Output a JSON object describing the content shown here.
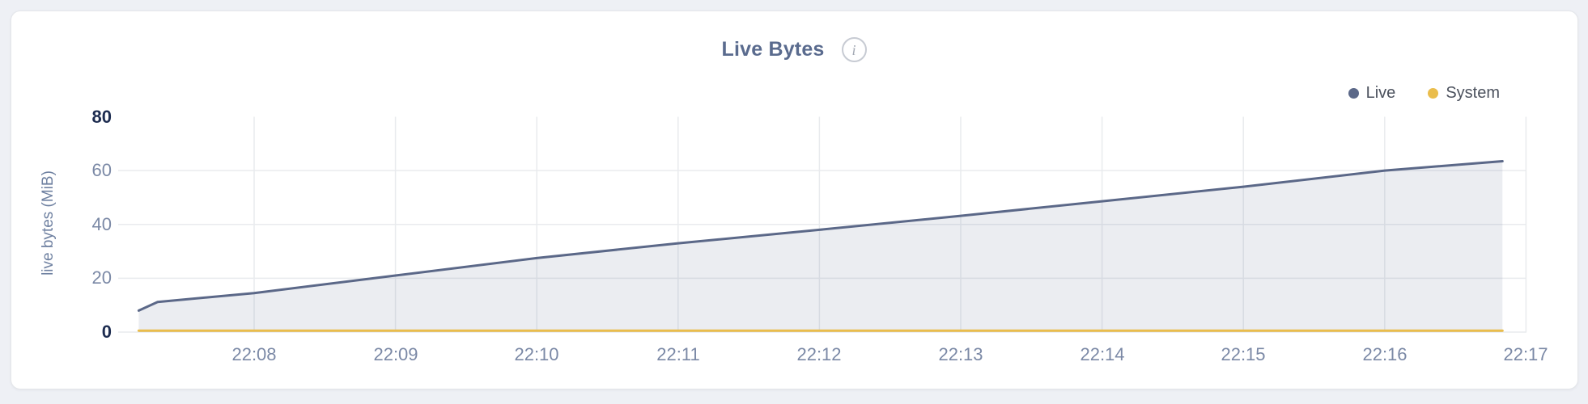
{
  "page": {
    "background": "#eef0f5"
  },
  "card": {
    "background": "#ffffff",
    "border_color": "#e4e6ea"
  },
  "header": {
    "info_glyph": "i",
    "info_icon": "info-circle-icon"
  },
  "chart_data": {
    "type": "area",
    "title": "Live Bytes",
    "ylabel": "live bytes (MiB)",
    "units": "MiB",
    "ylim": [
      0,
      80
    ],
    "yticks": [
      0,
      20,
      40,
      60,
      80
    ],
    "xticks": [
      "22:08",
      "22:09",
      "22:10",
      "22:11",
      "22:12",
      "22:13",
      "22:14",
      "22:15",
      "22:16",
      "22:17"
    ],
    "x_start": "22:07:11",
    "x_end": "22:16:50",
    "grid": true,
    "legend_position": "top-right",
    "colors": {
      "live": "#5b6888",
      "system": "#eabd4c",
      "gridline": "#e9ebee",
      "tick_normal": "#7b89a6",
      "tick_strong": "#1d2c50",
      "title": "#5a6b8e"
    },
    "series": [
      {
        "name": "Live",
        "color": "#5b6888",
        "area_fill": true,
        "fill": "rgba(90,107,140,0.12)",
        "points": [
          [
            "22:07:11",
            8.0
          ],
          [
            "22:07:19",
            11.2
          ],
          [
            "22:08:00",
            14.5
          ],
          [
            "22:09:00",
            21.0
          ],
          [
            "22:10:00",
            27.5
          ],
          [
            "22:11:00",
            33.0
          ],
          [
            "22:12:00",
            38.0
          ],
          [
            "22:13:00",
            43.2
          ],
          [
            "22:14:00",
            48.6
          ],
          [
            "22:15:00",
            54.0
          ],
          [
            "22:16:00",
            60.0
          ],
          [
            "22:16:50",
            63.5
          ]
        ]
      },
      {
        "name": "System",
        "color": "#eabd4c",
        "area_fill": false,
        "points": [
          [
            "22:07:11",
            0.5
          ],
          [
            "22:16:50",
            0.5
          ]
        ]
      }
    ]
  }
}
